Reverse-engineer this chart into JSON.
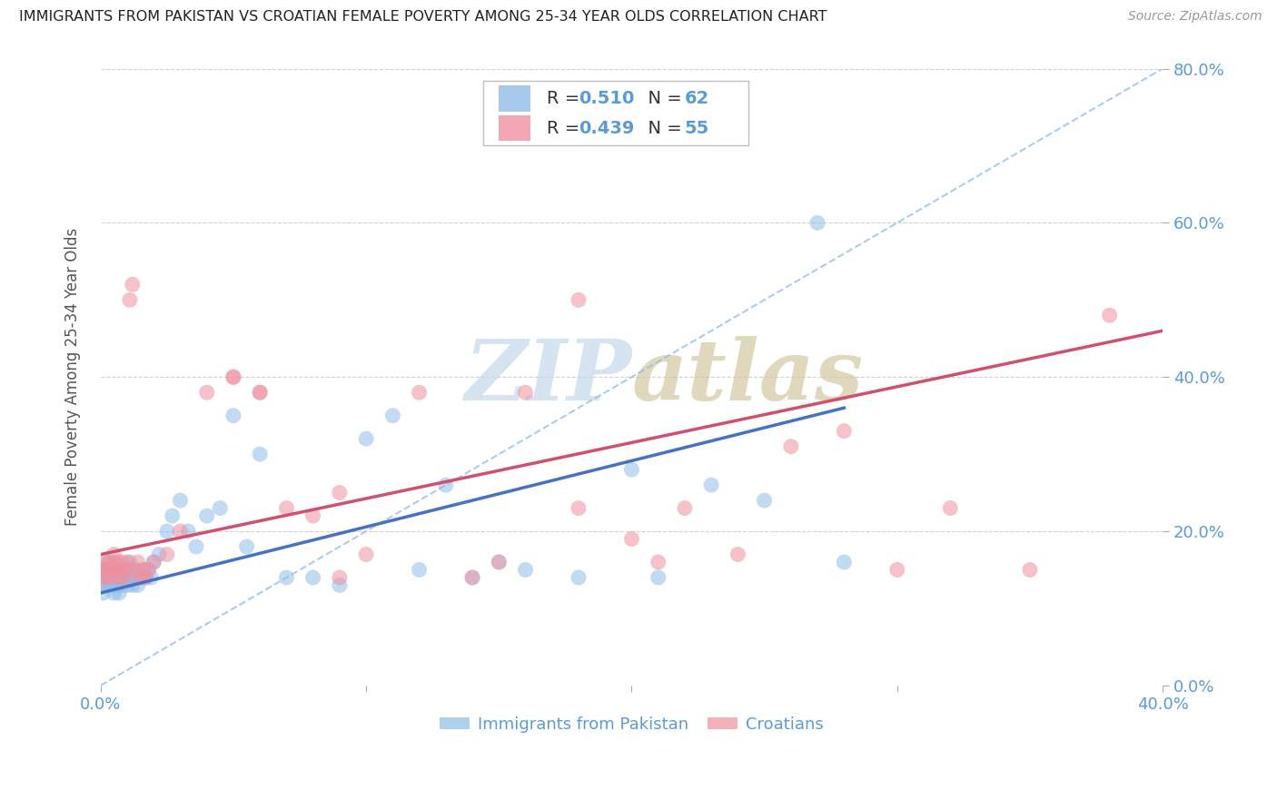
{
  "title": "IMMIGRANTS FROM PAKISTAN VS CROATIAN FEMALE POVERTY AMONG 25-34 YEAR OLDS CORRELATION CHART",
  "source": "Source: ZipAtlas.com",
  "ylabel": "Female Poverty Among 25-34 Year Olds",
  "legend_1_label": "Immigrants from Pakistan",
  "legend_2_label": "Croatians",
  "R1": 0.51,
  "N1": 62,
  "R2": 0.439,
  "N2": 55,
  "xlim": [
    0.0,
    0.4
  ],
  "ylim": [
    0.0,
    0.8
  ],
  "ytick_vals": [
    0.0,
    0.2,
    0.4,
    0.6,
    0.8
  ],
  "xtick_vals": [
    0.0,
    0.1,
    0.2,
    0.3,
    0.4
  ],
  "color_blue": "#90bce8",
  "color_pink": "#f090a0",
  "axis_color": "#5b9bd5",
  "grid_color": "#d0d0d0",
  "blue_line_color": "#4472c4",
  "pink_line_color": "#d05070",
  "diag_line_color": "#90bce8",
  "blue_scatter_x": [
    0.001,
    0.001,
    0.001,
    0.002,
    0.002,
    0.002,
    0.003,
    0.003,
    0.004,
    0.004,
    0.005,
    0.005,
    0.005,
    0.006,
    0.006,
    0.007,
    0.007,
    0.008,
    0.008,
    0.009,
    0.01,
    0.01,
    0.011,
    0.011,
    0.012,
    0.012,
    0.013,
    0.014,
    0.015,
    0.016,
    0.017,
    0.018,
    0.019,
    0.02,
    0.022,
    0.025,
    0.027,
    0.03,
    0.033,
    0.036,
    0.04,
    0.045,
    0.05,
    0.055,
    0.06,
    0.07,
    0.08,
    0.09,
    0.1,
    0.11,
    0.12,
    0.13,
    0.14,
    0.15,
    0.16,
    0.18,
    0.2,
    0.21,
    0.23,
    0.25,
    0.27,
    0.28
  ],
  "blue_scatter_y": [
    0.15,
    0.13,
    0.12,
    0.14,
    0.13,
    0.15,
    0.16,
    0.14,
    0.13,
    0.15,
    0.12,
    0.14,
    0.16,
    0.13,
    0.15,
    0.14,
    0.12,
    0.13,
    0.14,
    0.15,
    0.15,
    0.13,
    0.14,
    0.16,
    0.13,
    0.15,
    0.14,
    0.13,
    0.14,
    0.15,
    0.14,
    0.15,
    0.14,
    0.16,
    0.17,
    0.2,
    0.22,
    0.24,
    0.2,
    0.18,
    0.22,
    0.23,
    0.35,
    0.18,
    0.3,
    0.14,
    0.14,
    0.13,
    0.32,
    0.35,
    0.15,
    0.26,
    0.14,
    0.16,
    0.15,
    0.14,
    0.28,
    0.14,
    0.26,
    0.24,
    0.6,
    0.16
  ],
  "pink_scatter_x": [
    0.001,
    0.001,
    0.001,
    0.002,
    0.002,
    0.003,
    0.003,
    0.004,
    0.005,
    0.005,
    0.006,
    0.006,
    0.007,
    0.008,
    0.008,
    0.009,
    0.01,
    0.01,
    0.011,
    0.012,
    0.013,
    0.014,
    0.015,
    0.016,
    0.017,
    0.018,
    0.02,
    0.025,
    0.03,
    0.04,
    0.05,
    0.06,
    0.07,
    0.08,
    0.09,
    0.1,
    0.12,
    0.14,
    0.16,
    0.18,
    0.2,
    0.21,
    0.22,
    0.24,
    0.26,
    0.28,
    0.3,
    0.32,
    0.35,
    0.38,
    0.05,
    0.06,
    0.09,
    0.15,
    0.18
  ],
  "pink_scatter_y": [
    0.15,
    0.14,
    0.16,
    0.15,
    0.14,
    0.15,
    0.16,
    0.14,
    0.15,
    0.17,
    0.16,
    0.15,
    0.14,
    0.16,
    0.15,
    0.14,
    0.15,
    0.16,
    0.5,
    0.52,
    0.15,
    0.16,
    0.14,
    0.15,
    0.14,
    0.15,
    0.16,
    0.17,
    0.2,
    0.38,
    0.4,
    0.38,
    0.23,
    0.22,
    0.14,
    0.17,
    0.38,
    0.14,
    0.38,
    0.23,
    0.19,
    0.16,
    0.23,
    0.17,
    0.31,
    0.33,
    0.15,
    0.23,
    0.15,
    0.48,
    0.4,
    0.38,
    0.25,
    0.16,
    0.5
  ],
  "blue_line_x": [
    0.0,
    0.28
  ],
  "blue_line_y": [
    0.12,
    0.36
  ],
  "pink_line_x": [
    0.0,
    0.4
  ],
  "pink_line_y": [
    0.17,
    0.46
  ],
  "diag_line_x": [
    0.0,
    0.4
  ],
  "diag_line_y": [
    0.0,
    0.8
  ]
}
